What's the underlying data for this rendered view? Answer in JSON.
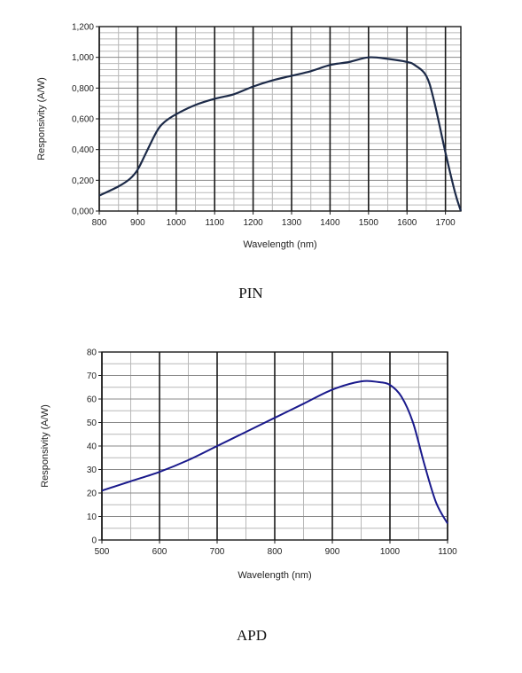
{
  "chart_data": [
    {
      "type": "line",
      "caption": "PIN",
      "xlabel": "Wavelength (nm)",
      "ylabel": "Responsivity (A/W)",
      "xlim": [
        800,
        1740
      ],
      "ylim": [
        0,
        1.2
      ],
      "x_ticks": [
        800,
        900,
        1000,
        1100,
        1200,
        1300,
        1400,
        1500,
        1600,
        1700
      ],
      "x_tick_labels": [
        "800",
        "900",
        "1000",
        "1100",
        "1200",
        "1300",
        "1400",
        "1500",
        "1600",
        "1700"
      ],
      "y_ticks": [
        0,
        0.2,
        0.4,
        0.6,
        0.8,
        1.0,
        1.2
      ],
      "y_tick_labels": [
        "0,000",
        "0,200",
        "0,400",
        "0,600",
        "0,800",
        "1,000",
        "1,200"
      ],
      "grid": true,
      "line_color": "#1c2a48",
      "series": [
        {
          "x": [
            800,
            850,
            880,
            900,
            920,
            950,
            970,
            1000,
            1050,
            1100,
            1150,
            1200,
            1250,
            1300,
            1350,
            1400,
            1450,
            1500,
            1550,
            1600,
            1620,
            1650,
            1670,
            1700,
            1725,
            1740
          ],
          "values": [
            0.1,
            0.16,
            0.21,
            0.27,
            0.37,
            0.52,
            0.58,
            0.63,
            0.69,
            0.73,
            0.76,
            0.81,
            0.85,
            0.88,
            0.91,
            0.95,
            0.97,
            1.0,
            0.99,
            0.97,
            0.95,
            0.88,
            0.72,
            0.38,
            0.12,
            0.0
          ]
        }
      ]
    },
    {
      "type": "line",
      "caption": "APD",
      "xlabel": "Wavelength (nm)",
      "ylabel": "Responsivity (A/W)",
      "xlim": [
        500,
        1100
      ],
      "ylim": [
        0,
        80
      ],
      "x_ticks": [
        500,
        600,
        700,
        800,
        900,
        1000,
        1100
      ],
      "x_tick_labels": [
        "500",
        "600",
        "700",
        "800",
        "900",
        "1000",
        "1100"
      ],
      "y_ticks": [
        0,
        10,
        20,
        30,
        40,
        50,
        60,
        70,
        80
      ],
      "y_tick_labels": [
        "0",
        "10",
        "20",
        "30",
        "40",
        "50",
        "60",
        "70",
        "80"
      ],
      "grid": true,
      "line_color": "#1a1a8c",
      "series": [
        {
          "x": [
            500,
            550,
            600,
            650,
            700,
            750,
            800,
            850,
            900,
            950,
            980,
            1000,
            1020,
            1040,
            1060,
            1080,
            1100
          ],
          "values": [
            21,
            25,
            29,
            34,
            40,
            46,
            52,
            58,
            64,
            67.5,
            67.2,
            66,
            61,
            50,
            32,
            16,
            7
          ]
        }
      ]
    }
  ]
}
